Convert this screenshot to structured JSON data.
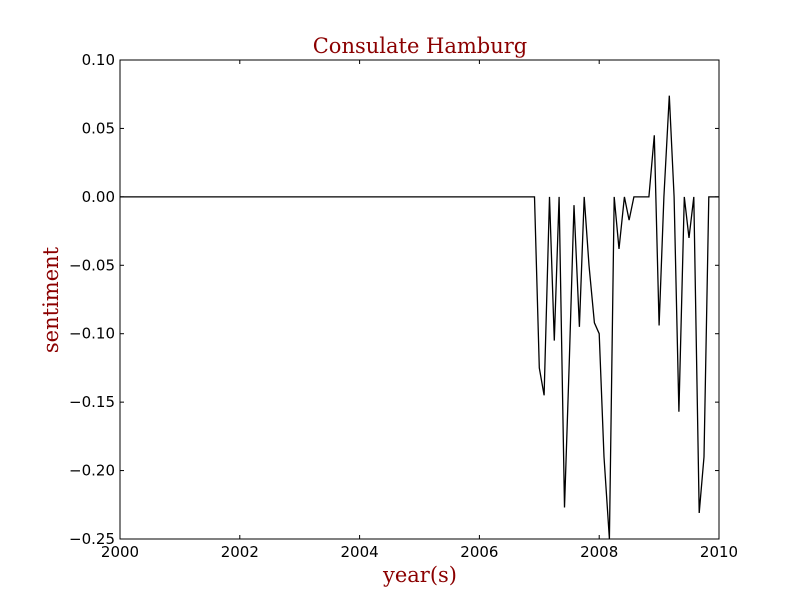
{
  "chart_data": {
    "type": "line",
    "title": "Consulate Hamburg",
    "xlabel": "year(s)",
    "ylabel": "sentiment",
    "xlim": [
      2000,
      2010
    ],
    "ylim": [
      -0.25,
      0.1
    ],
    "xticks": [
      2000,
      2002,
      2004,
      2006,
      2008,
      2010
    ],
    "xtick_labels": [
      "2000",
      "2002",
      "2004",
      "2006",
      "2008",
      "2010"
    ],
    "yticks": [
      0.1,
      0.05,
      0.0,
      -0.05,
      -0.1,
      -0.15,
      -0.2,
      -0.25
    ],
    "ytick_labels": [
      "0.10",
      "0.05",
      "0.00",
      "−0.05",
      "−0.10",
      "−0.15",
      "−0.20",
      "−0.25"
    ],
    "grid": false,
    "line_color": "#000000",
    "text_color": "#8b0000",
    "series": [
      {
        "x": [
          2000.0,
          2006.92,
          2007.0,
          2007.08,
          2007.17,
          2007.25,
          2007.33,
          2007.42,
          2007.5,
          2007.58,
          2007.67,
          2007.75,
          2007.83,
          2007.92,
          2008.0,
          2008.08,
          2008.17,
          2008.25,
          2008.33,
          2008.42,
          2008.5,
          2008.58,
          2008.67,
          2008.75,
          2008.83,
          2008.92,
          2009.0,
          2009.08,
          2009.17,
          2009.25,
          2009.33,
          2009.42,
          2009.5,
          2009.58,
          2009.67,
          2009.75,
          2009.83,
          2009.92,
          2010.0
        ],
        "y": [
          0.0,
          0.0,
          -0.125,
          -0.145,
          0.0,
          -0.105,
          0.0,
          -0.227,
          -0.12,
          -0.006,
          -0.095,
          0.0,
          -0.05,
          -0.092,
          -0.1,
          -0.19,
          -0.25,
          0.0,
          -0.038,
          0.0,
          -0.017,
          0.0,
          0.0,
          0.0,
          0.0,
          0.045,
          -0.094,
          0.0,
          0.074,
          0.0,
          -0.157,
          0.0,
          -0.03,
          0.0,
          -0.231,
          -0.19,
          0.0,
          0.0,
          0.0
        ]
      }
    ]
  }
}
